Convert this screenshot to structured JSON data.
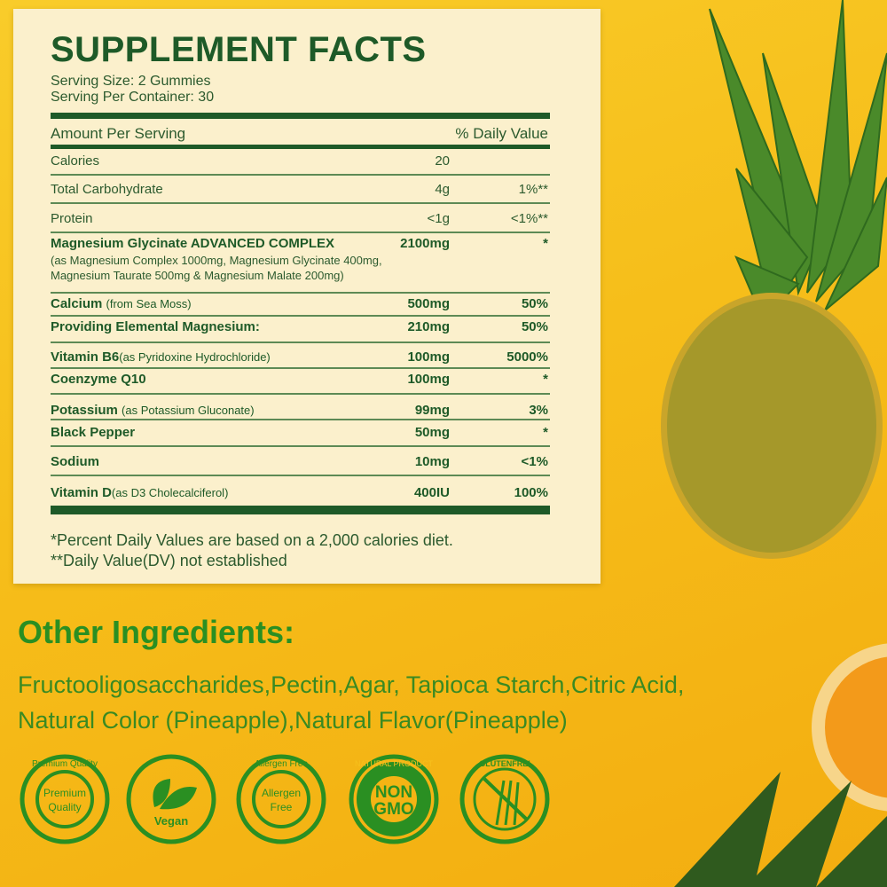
{
  "facts": {
    "title": "SUPPLEMENT FACTS",
    "serving_size": "Serving Size: 2 Gummies",
    "servings_per_container": "Serving Per Container: 30",
    "header_amount": "Amount Per Serving",
    "header_dv": "% Daily Value",
    "rows": [
      {
        "name": "Calories",
        "amount": "20",
        "dv": ""
      },
      {
        "name": "Total Carbohydrate",
        "amount": "4g",
        "dv": "1%**"
      },
      {
        "name": "Protein",
        "amount": "<1g",
        "dv": "<1%**"
      },
      {
        "name": "Magnesium Glycinate ADVANCED COMPLEX",
        "detail": "(as Magnesium Complex 1000mg, Magnesium Glycinate 400mg,",
        "detail2": "Magnesium Taurate 500mg & Magnesium Malate 200mg)",
        "amount": "2100mg",
        "dv": "*"
      },
      {
        "name": "Calcium",
        "detail": "(from Sea Moss)",
        "amount": "500mg",
        "dv": "50%"
      },
      {
        "name": "Providing Elemental Magnesium:",
        "amount": "210mg",
        "dv": "50%"
      },
      {
        "name": "Vitamin B6",
        "detail": "(as Pyridoxine Hydrochloride)",
        "amount": "100mg",
        "dv": "5000%"
      },
      {
        "name": "Coenzyme Q10",
        "amount": "100mg",
        "dv": "*"
      },
      {
        "name": "Potassium",
        "detail": "(as Potassium Gluconate)",
        "amount": "99mg",
        "dv": "3%"
      },
      {
        "name": "Black Pepper",
        "amount": "50mg",
        "dv": "*"
      },
      {
        "name": "Sodium",
        "amount": "10mg",
        "dv": "<1%"
      },
      {
        "name": "Vitamin D",
        "detail": "(as D3 Cholecalciferol)",
        "amount": "400IU",
        "dv": "100%"
      }
    ],
    "footnote1": "*Percent Daily Values are based on a 2,000 calories diet.",
    "footnote2": "**Daily Value(DV) not established"
  },
  "other_ingredients": {
    "title": "Other Ingredients:",
    "text": "Fructooligosaccharides,Pectin,Agar, Tapioca Starch,Citric Acid, Natural Color (Pineapple),Natural Flavor(Pineapple)"
  },
  "badges": [
    {
      "icon": "premium-quality-icon",
      "ring": "Premium Quality",
      "center": "Premium Quality"
    },
    {
      "icon": "vegan-leaf-icon",
      "center": "Vegan"
    },
    {
      "icon": "allergen-free-icon",
      "ring": "Allergen Free",
      "center": "Allergen Free"
    },
    {
      "icon": "non-gmo-icon",
      "ring": "NATURAL PRODUCT",
      "center": "NON GMO"
    },
    {
      "icon": "gluten-free-icon",
      "ring": "GLUTENFREI"
    }
  ],
  "colors": {
    "green_dark": "#1e5a28",
    "green_bright": "#2a8f22",
    "panel": "#fbf0cc",
    "background": "#f6be1a"
  }
}
